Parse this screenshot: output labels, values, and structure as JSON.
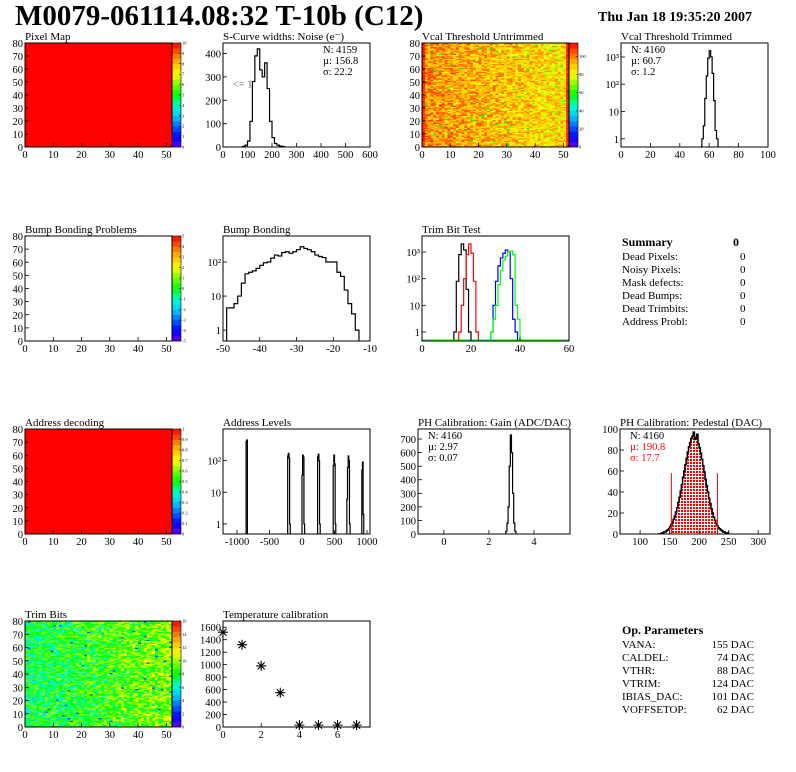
{
  "header": {
    "title": "M0079-061114.08:32 T-10b (C12)",
    "date": "Thu Jan 18 19:35:20 2007"
  },
  "summary": {
    "title": "Summary",
    "total": "0",
    "rows": [
      {
        "label": "Dead Pixels:",
        "value": "0"
      },
      {
        "label": "Noisy Pixels:",
        "value": "0"
      },
      {
        "label": "Mask defects:",
        "value": "0"
      },
      {
        "label": "Dead Bumps:",
        "value": "0"
      },
      {
        "label": "Dead Trimbits:",
        "value": "0"
      },
      {
        "label": "Address Probl:",
        "value": "0"
      }
    ]
  },
  "op_parameters": {
    "title": "Op. Parameters",
    "rows": [
      {
        "label": "VANA:",
        "value": "155 DAC"
      },
      {
        "label": "CALDEL:",
        "value": "74 DAC"
      },
      {
        "label": "VTHR:",
        "value": "88 DAC"
      },
      {
        "label": "VTRIM:",
        "value": "124 DAC"
      },
      {
        "label": "IBIAS_DAC:",
        "value": "101 DAC"
      },
      {
        "label": "VOFFSETOP:",
        "value": "62 DAC"
      }
    ]
  },
  "chart_data": [
    {
      "id": "pixel_map",
      "type": "heatmap",
      "title": "Pixel Map",
      "xlim": [
        0,
        52
      ],
      "ylim": [
        0,
        80
      ],
      "xticks": [
        0,
        10,
        20,
        30,
        40,
        50
      ],
      "yticks": [
        0,
        10,
        20,
        30,
        40,
        50,
        60,
        70,
        80
      ],
      "zlim": [
        0,
        10
      ],
      "zticks": [
        0,
        1,
        2,
        3,
        4,
        5,
        6,
        7,
        8,
        9,
        10
      ],
      "uniform_value": 10
    },
    {
      "id": "scurve",
      "type": "histogram",
      "title": "S-Curve widths: Noise (e⁻)",
      "xlim": [
        0,
        600
      ],
      "ylim": [
        0,
        445
      ],
      "xticks": [
        0,
        100,
        200,
        300,
        400,
        500,
        600
      ],
      "yticks": [
        0,
        100,
        200,
        300,
        400
      ],
      "stats_position": "top-right",
      "stats": [
        {
          "text": "N: 4159",
          "color": "#000000"
        },
        {
          "text": "µ: 156.8",
          "color": "#000000"
        },
        {
          "text": "σ: 22.2",
          "color": "#000000"
        }
      ],
      "annotations": [
        {
          "text": "<= 1",
          "x": 40,
          "y": 255,
          "color": "#666666"
        }
      ],
      "series": [
        {
          "color": "#000000",
          "start": 80,
          "bin_width": 10,
          "values": [
            3,
            8,
            25,
            110,
            280,
            390,
            420,
            330,
            300,
            360,
            250,
            110,
            40,
            15,
            8,
            4,
            2
          ]
        }
      ]
    },
    {
      "id": "vcal_untrimmed",
      "type": "heatmap",
      "title": "Vcal Threshold Untrimmed",
      "xlim": [
        0,
        52
      ],
      "ylim": [
        0,
        80
      ],
      "xticks": [
        0,
        10,
        20,
        30,
        40,
        50
      ],
      "yticks": [
        0,
        10,
        20,
        30,
        40,
        50,
        60,
        70,
        80
      ],
      "zlim": [
        0,
        115
      ],
      "zticks": [
        0,
        20,
        40,
        60,
        80,
        100
      ],
      "value_range": [
        76,
        112
      ],
      "gradient": "decreasing-right"
    },
    {
      "id": "vcal_trimmed",
      "type": "histogram",
      "title": "Vcal Threshold Trimmed",
      "xlim": [
        0,
        100
      ],
      "ylim": [
        0.5,
        3250
      ],
      "log_y": true,
      "xticks": [
        0,
        20,
        40,
        60,
        80,
        100
      ],
      "yticks": [
        1,
        10,
        100,
        1000
      ],
      "ytick_labels": [
        "1",
        "10",
        "10²",
        "10³"
      ],
      "stats_position": "top-left",
      "stats": [
        {
          "text": "N: 4160",
          "color": "#000000"
        },
        {
          "text": "µ: 60.7",
          "color": "#000000"
        },
        {
          "text": "σ:  1.2",
          "color": "#000000"
        }
      ],
      "series": [
        {
          "color": "#000000",
          "start": 54,
          "bin_width": 1,
          "values": [
            0,
            1,
            3,
            30,
            200,
            900,
            1700,
            1000,
            250,
            25,
            2,
            1
          ]
        }
      ]
    },
    {
      "id": "bump_problems",
      "type": "heatmap",
      "title": "Bump Bonding Problems",
      "xlim": [
        0,
        52
      ],
      "ylim": [
        0,
        80
      ],
      "xticks": [
        0,
        10,
        20,
        30,
        40,
        50
      ],
      "yticks": [
        0,
        10,
        20,
        30,
        40,
        50,
        60,
        70,
        80
      ],
      "zlim": [
        -5,
        5
      ],
      "zticks": [
        -5,
        -4,
        -3,
        -2,
        -1,
        0,
        1,
        2,
        3,
        4,
        5
      ],
      "empty": true
    },
    {
      "id": "bump_bonding",
      "type": "histogram",
      "title": "Bump Bonding",
      "xlim": [
        -50,
        -10
      ],
      "ylim": [
        0.48,
        580
      ],
      "log_y": true,
      "xticks": [
        -50,
        -40,
        -30,
        -20,
        -10
      ],
      "yticks": [
        1,
        10,
        100
      ],
      "ytick_labels": [
        "1",
        "10",
        "10²"
      ],
      "series": [
        {
          "color": "#000000",
          "start": -49,
          "bin_width": 1,
          "values": [
            4.5,
            4.5,
            6,
            10,
            24,
            45,
            50,
            55,
            65,
            80,
            95,
            100,
            130,
            160,
            150,
            190,
            200,
            180,
            200,
            230,
            280,
            250,
            230,
            200,
            160,
            145,
            135,
            100,
            100,
            100,
            50,
            38,
            15,
            6,
            3,
            1
          ]
        }
      ]
    },
    {
      "id": "trim_bit_test",
      "type": "histogram",
      "title": "Trim Bit Test",
      "xlim": [
        0,
        60
      ],
      "ylim": [
        0.46,
        4000
      ],
      "log_y": true,
      "xticks": [
        0,
        20,
        40,
        60
      ],
      "yticks": [
        1,
        10,
        100,
        1000
      ],
      "ytick_labels": [
        "1",
        "10",
        "10²",
        "10³"
      ],
      "series": [
        {
          "color": "#000000",
          "start": 13,
          "bin_width": 1,
          "values": [
            1,
            80,
            800,
            2000,
            1200,
            40,
            1
          ]
        },
        {
          "color": "#ff0000",
          "start": 15,
          "bin_width": 1,
          "values": [
            1,
            10,
            100,
            800,
            2000,
            900,
            80,
            1
          ]
        },
        {
          "color": "#0000ff",
          "start": 28,
          "bin_width": 1,
          "values": [
            1,
            10,
            80,
            300,
            600,
            900,
            1200,
            1000,
            100,
            3,
            1
          ]
        },
        {
          "color": "#00ff00",
          "start": 28,
          "bin_width": 1,
          "values": [
            1,
            3,
            10,
            60,
            200,
            500,
            700,
            1000,
            1100,
            800,
            10,
            3
          ]
        }
      ]
    },
    {
      "id": "address_decoding",
      "type": "heatmap",
      "title": "Address decoding",
      "xlim": [
        0,
        52
      ],
      "ylim": [
        0,
        80
      ],
      "xticks": [
        0,
        10,
        20,
        30,
        40,
        50
      ],
      "yticks": [
        0,
        10,
        20,
        30,
        40,
        50,
        60,
        70,
        80
      ],
      "zlim": [
        0,
        1
      ],
      "zticks": [
        0,
        0.1,
        0.2,
        0.3,
        0.4,
        0.5,
        0.6,
        0.7,
        0.8,
        0.9,
        1
      ],
      "uniform_value": 1
    },
    {
      "id": "address_levels",
      "type": "histogram",
      "title": "Address Levels",
      "xlim": [
        -1215,
        1046
      ],
      "ylim": [
        0.48,
        1000
      ],
      "log_y": true,
      "xticks": [
        -1000,
        -500,
        0,
        500,
        1000
      ],
      "yticks": [
        1,
        10,
        100
      ],
      "ytick_labels": [
        "1",
        "10",
        "10²"
      ],
      "series": [
        {
          "color": "#000000",
          "start": -860,
          "bin_width": 10,
          "values": [
            400,
            450
          ]
        },
        {
          "color": "#000000",
          "start": -220,
          "bin_width": 10,
          "values": [
            140,
            170,
            120,
            1
          ]
        },
        {
          "color": "#000000",
          "start": 0,
          "bin_width": 10,
          "values": [
            35,
            150,
            130,
            1
          ]
        },
        {
          "color": "#000000",
          "start": 240,
          "bin_width": 10,
          "values": [
            130,
            160,
            100,
            1
          ]
        },
        {
          "color": "#000000",
          "start": 480,
          "bin_width": 10,
          "values": [
            70,
            150,
            80,
            1
          ]
        },
        {
          "color": "#000000",
          "start": 690,
          "bin_width": 10,
          "values": [
            6,
            60,
            140,
            100,
            1
          ]
        },
        {
          "color": "#000000",
          "start": 920,
          "bin_width": 10,
          "values": [
            50,
            90,
            2
          ]
        }
      ]
    },
    {
      "id": "ph_gain",
      "type": "histogram",
      "title": "PH Calibration: Gain (ADC/DAC)",
      "xlim": [
        -1.15,
        5.6
      ],
      "ylim": [
        0,
        774
      ],
      "xticks": [
        0,
        2,
        4
      ],
      "yticks": [
        0,
        100,
        200,
        300,
        400,
        500,
        600,
        700
      ],
      "stats_position": "top-left",
      "stats": [
        {
          "text": "N: 4160",
          "color": "#000000"
        },
        {
          "text": "µ: 2.97",
          "color": "#000000"
        },
        {
          "text": "σ: 0.07",
          "color": "#000000"
        }
      ],
      "series": [
        {
          "color": "#000000",
          "start": 2.75,
          "bin_width": 0.05,
          "values": [
            20,
            80,
            200,
            500,
            730,
            600,
            300,
            80,
            20
          ]
        }
      ]
    },
    {
      "id": "ph_pedestal",
      "type": "histogram",
      "title": "PH Calibration: Pedestal (DAC)",
      "xlim": [
        66,
        320
      ],
      "ylim": [
        0,
        100
      ],
      "xticks": [
        100,
        150,
        200,
        250,
        300
      ],
      "yticks": [
        0,
        20,
        40,
        60,
        80,
        100
      ],
      "stats_position": "top-left",
      "stats": [
        {
          "text": "N: 4160",
          "color": "#000000"
        },
        {
          "text": "µ: 190.8",
          "color": "#ff0000"
        },
        {
          "text": "σ: 17.7",
          "color": "#ff0000"
        }
      ],
      "fill": {
        "range": [
          152,
          232
        ],
        "color": "#ff0000"
      },
      "cut_lines": [
        {
          "x": 153,
          "y": 58,
          "color": "#ff0000"
        },
        {
          "x": 231,
          "y": 58,
          "color": "#ff0000"
        }
      ],
      "series": [
        {
          "color": "#000000",
          "start": 130,
          "bin_width": 2,
          "values": [
            0,
            0,
            0,
            1,
            1,
            2,
            2,
            3,
            4,
            5,
            7,
            9,
            11,
            14,
            17,
            21,
            25,
            30,
            35,
            41,
            47,
            54,
            60,
            66,
            72,
            78,
            83,
            87,
            91,
            93,
            97,
            90,
            92,
            95,
            86,
            82,
            77,
            71,
            65,
            59,
            52,
            46,
            40,
            34,
            29,
            24,
            20,
            16,
            13,
            10,
            8,
            6,
            5,
            4,
            3,
            2,
            2,
            1,
            1,
            1,
            0
          ]
        }
      ]
    },
    {
      "id": "trim_bits",
      "type": "heatmap",
      "title": "Trim Bits",
      "xlim": [
        0,
        52
      ],
      "ylim": [
        0,
        80
      ],
      "xticks": [
        0,
        10,
        20,
        30,
        40,
        50
      ],
      "yticks": [
        0,
        10,
        20,
        30,
        40,
        50,
        60,
        70,
        80
      ],
      "zlim": [
        0,
        16
      ],
      "zticks": [
        0,
        2,
        4,
        6,
        8,
        10,
        12,
        14,
        16
      ],
      "value_range": [
        6,
        12
      ],
      "gradient": "increasing-right"
    },
    {
      "id": "temperature",
      "type": "scatter",
      "title": "Temperature calibration",
      "xlim": [
        0,
        7.7
      ],
      "ylim": [
        0,
        1700
      ],
      "xticks": [
        0,
        2,
        4,
        6
      ],
      "yticks": [
        0,
        200,
        400,
        600,
        800,
        1000,
        1200,
        1400,
        1600
      ],
      "marker": "asterisk",
      "points": [
        {
          "x": 0,
          "y": 1520
        },
        {
          "x": 1,
          "y": 1320
        },
        {
          "x": 2,
          "y": 980
        },
        {
          "x": 3,
          "y": 550
        },
        {
          "x": 4,
          "y": 30
        },
        {
          "x": 5,
          "y": 30
        },
        {
          "x": 6,
          "y": 30
        },
        {
          "x": 7,
          "y": 30
        }
      ]
    }
  ]
}
